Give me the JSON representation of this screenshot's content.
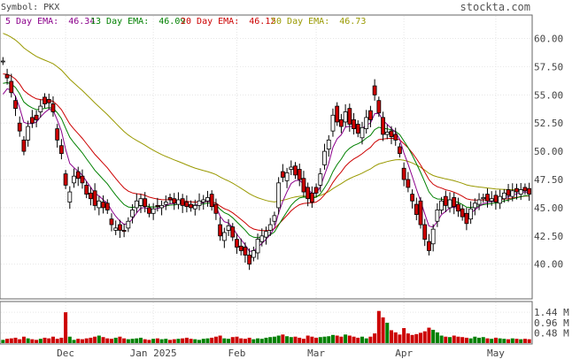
{
  "header": {
    "symbol_label": "Symbol: PKX",
    "site": "stockta.com",
    "legend": [
      {
        "label": "5 Day EMA:",
        "value": "46.34",
        "color": "#8b008b"
      },
      {
        "label": "13 Day EMA:",
        "value": "46.09",
        "color": "#008000"
      },
      {
        "label": "20 Day EMA:",
        "value": "46.12",
        "color": "#cc0000"
      },
      {
        "label": "50 Day EMA:",
        "value": "46.73",
        "color": "#999900"
      }
    ]
  },
  "chart_data": {
    "type": "candlestick",
    "symbol": "PKX",
    "price_axis": {
      "ticks": [
        "60.00",
        "57.50",
        "55.00",
        "52.50",
        "50.00",
        "47.50",
        "45.00",
        "42.50",
        "40.00"
      ],
      "range": [
        37.0,
        62.0
      ]
    },
    "volume_axis": {
      "ticks": [
        "1.44 M",
        "0.96 M",
        "0.48 M"
      ],
      "range": [
        0,
        1.9
      ]
    },
    "x_labels": [
      {
        "label": "Dec",
        "index": 15
      },
      {
        "label": "Jan 2025",
        "index": 36
      },
      {
        "label": "Feb",
        "index": 56
      },
      {
        "label": "Mar",
        "index": 75
      },
      {
        "label": "Apr",
        "index": 96
      },
      {
        "label": "May",
        "index": 118
      }
    ],
    "grid": true,
    "colors": {
      "up": "#ffffff",
      "down": "#cc0000",
      "vol_up": "#008000",
      "vol_down": "#cc0000",
      "ema5": "#8b008b",
      "ema13": "#008000",
      "ema20": "#cc0000",
      "ema50": "#999900"
    },
    "closes": [
      58.0,
      56.5,
      55.2,
      53.8,
      51.8,
      50.0,
      52.2,
      52.5,
      52.8,
      54.0,
      54.2,
      54.3,
      53.5,
      51.0,
      49.8,
      47.0,
      46.4,
      47.8,
      47.6,
      47.2,
      46.2,
      45.8,
      45.2,
      45.6,
      45.0,
      44.8,
      43.5,
      43.2,
      43.0,
      42.9,
      43.8,
      44.8,
      45.6,
      45.8,
      45.1,
      44.5,
      44.9,
      45.1,
      45.2,
      45.5,
      45.7,
      45.4,
      45.7,
      45.2,
      45.1,
      45.0,
      45.2,
      45.6,
      45.7,
      45.9,
      45.1,
      44.5,
      42.5,
      42.8,
      43.4,
      42.4,
      41.5,
      41.2,
      40.8,
      40.0,
      41.2,
      42.2,
      42.5,
      42.9,
      43.5,
      44.3,
      47.2,
      47.7,
      48.1,
      48.6,
      47.9,
      47.5,
      46.4,
      45.8,
      45.5,
      46.3,
      48.0,
      50.0,
      51.0,
      53.2,
      52.6,
      52.2,
      53.5,
      52.4,
      52.0,
      51.6,
      52.1,
      53.0,
      52.8,
      55.0,
      53.4,
      51.5,
      51.7,
      51.3,
      51.0,
      49.8,
      47.5,
      46.8,
      45.6,
      44.4,
      43.5,
      42.2,
      41.2,
      43.1,
      44.8,
      45.6,
      45.2,
      45.7,
      45.1,
      44.7,
      44.2,
      43.6,
      44.9,
      45.4,
      45.7,
      45.9,
      45.6,
      45.8,
      45.5,
      46.0,
      46.3,
      46.1,
      46.5,
      46.4,
      46.6,
      46.5,
      46.2
    ],
    "opens": [
      58.0,
      56.8,
      56.2,
      54.5,
      52.5,
      51.0,
      51.0,
      53.0,
      53.2,
      53.5,
      54.8,
      54.6,
      54.2,
      52.0,
      50.5,
      48.0,
      45.5,
      47.2,
      48.2,
      47.8,
      47.0,
      46.3,
      46.5,
      45.0,
      45.5,
      45.4,
      44.0,
      43.0,
      43.5,
      43.0,
      43.2,
      44.2,
      45.0,
      45.2,
      45.8,
      45.0,
      44.5,
      45.2,
      45.0,
      45.3,
      45.9,
      45.8,
      45.3,
      45.8,
      45.5,
      45.3,
      44.9,
      45.2,
      45.5,
      45.6,
      46.2,
      45.3,
      43.5,
      42.1,
      43.0,
      43.3,
      42.2,
      41.6,
      41.5,
      40.8,
      40.6,
      41.0,
      42.0,
      42.4,
      43.0,
      43.8,
      45.0,
      48.2,
      47.4,
      48.4,
      48.7,
      48.4,
      47.6,
      46.8,
      46.3,
      46.8,
      47.0,
      48.8,
      50.2,
      51.8,
      54.0,
      52.8,
      52.6,
      53.8,
      52.8,
      52.4,
      51.2,
      52.0,
      53.6,
      55.8,
      54.5,
      53.0,
      51.5,
      51.8,
      51.5,
      50.4,
      48.5,
      47.5,
      46.2,
      45.3,
      45.6,
      43.5,
      42.0,
      41.8,
      43.8,
      44.8,
      46.0,
      45.0,
      45.9,
      45.3,
      44.9,
      44.5,
      44.0,
      45.0,
      45.3,
      45.8,
      46.2,
      45.6,
      46.1,
      45.4,
      45.8,
      46.6,
      46.0,
      46.7,
      46.2,
      46.8,
      46.7
    ],
    "volumes": [
      0.15,
      0.2,
      0.22,
      0.25,
      0.18,
      0.3,
      0.22,
      0.18,
      0.15,
      0.2,
      0.25,
      0.22,
      0.3,
      0.2,
      0.25,
      1.44,
      0.3,
      0.15,
      0.2,
      0.18,
      0.22,
      0.25,
      0.3,
      0.35,
      0.28,
      0.22,
      0.2,
      0.25,
      0.3,
      0.22,
      0.18,
      0.2,
      0.22,
      0.25,
      0.18,
      0.15,
      0.2,
      0.22,
      0.18,
      0.2,
      0.15,
      0.18,
      0.2,
      0.22,
      0.25,
      0.2,
      0.18,
      0.15,
      0.2,
      0.22,
      0.25,
      0.3,
      0.35,
      0.22,
      0.2,
      0.28,
      0.3,
      0.22,
      0.2,
      0.25,
      0.18,
      0.22,
      0.2,
      0.25,
      0.28,
      0.3,
      0.35,
      0.4,
      0.32,
      0.28,
      0.3,
      0.25,
      0.2,
      0.35,
      0.3,
      0.25,
      0.28,
      0.3,
      0.32,
      0.38,
      0.35,
      0.3,
      0.4,
      0.35,
      0.3,
      0.25,
      0.3,
      0.22,
      0.3,
      0.45,
      1.5,
      1.2,
      0.95,
      0.6,
      0.5,
      0.4,
      0.7,
      0.45,
      0.38,
      0.42,
      0.48,
      0.55,
      0.72,
      0.62,
      0.5,
      0.35,
      0.3,
      0.28,
      0.35,
      0.3,
      0.28,
      0.25,
      0.22,
      0.3,
      0.25,
      0.28,
      0.22,
      0.2,
      0.25,
      0.22,
      0.2,
      0.18,
      0.22,
      0.2,
      0.18,
      0.2,
      0.18
    ]
  }
}
